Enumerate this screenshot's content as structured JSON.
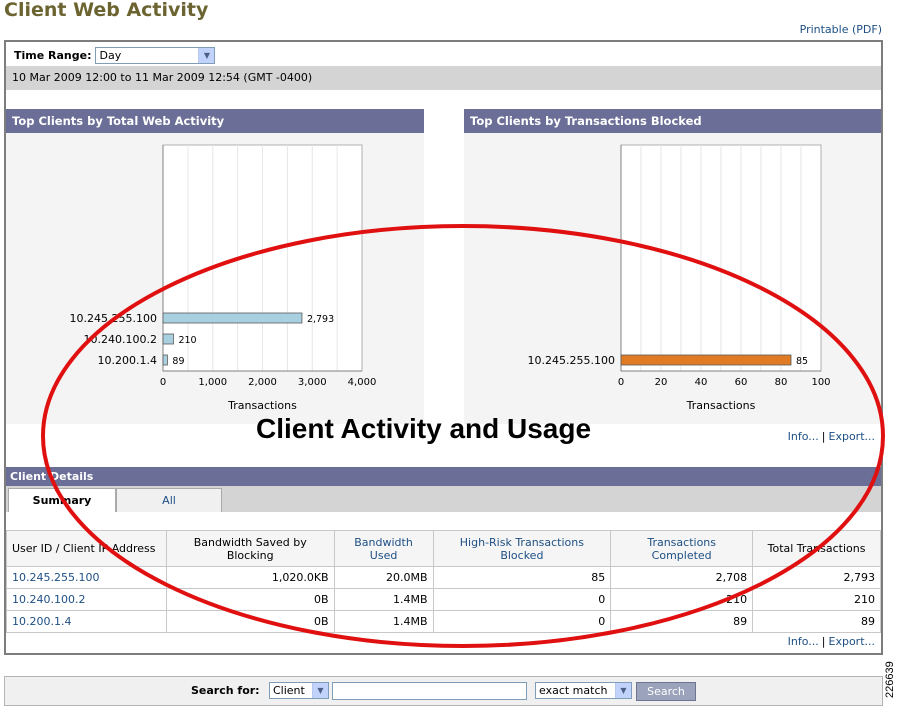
{
  "page": {
    "title": "Client Web Activity",
    "printable_link": "Printable (PDF)"
  },
  "time_range": {
    "label": "Time Range:",
    "selected": "Day",
    "date_range": "10 Mar 2009 12:00 to 11 Mar 2009 12:54 (GMT -0400)"
  },
  "charts_links": {
    "info": "Info...",
    "export": "Export..."
  },
  "chart_data": [
    {
      "type": "bar",
      "title": "Top Clients by Total Web Activity",
      "categories": [
        "10.245.255.100",
        "10.240.100.2",
        "10.200.1.4"
      ],
      "values": [
        2793,
        210,
        89
      ],
      "value_labels": [
        "2,793",
        "210",
        "89"
      ],
      "xlabel": "Transactions",
      "xlim": [
        0,
        4000
      ],
      "xticks": [
        "0",
        "1,000",
        "2,000",
        "3,000",
        "4,000"
      ],
      "xtick_values": [
        0,
        1000,
        2000,
        3000,
        4000
      ],
      "bar_color": "#a8d0e0",
      "orientation": "horizontal"
    },
    {
      "type": "bar",
      "title": "Top Clients by Transactions Blocked",
      "categories": [
        "10.245.255.100"
      ],
      "values": [
        85
      ],
      "value_labels": [
        "85"
      ],
      "xlabel": "Transactions",
      "xlim": [
        0,
        100
      ],
      "xticks": [
        "0",
        "20",
        "40",
        "60",
        "80",
        "100"
      ],
      "xtick_values": [
        0,
        20,
        40,
        60,
        80,
        100
      ],
      "bar_color": "#e07b24",
      "orientation": "horizontal"
    }
  ],
  "client_details": {
    "header": "Client Details",
    "tabs": [
      {
        "label": "Summary"
      },
      {
        "label": "All"
      }
    ],
    "columns": [
      "User ID / Client IP Address",
      "Bandwidth Saved by Blocking",
      "Bandwidth Used",
      "High-Risk Transactions Blocked",
      "Transactions Completed",
      "Total Transactions"
    ],
    "rows": [
      [
        "10.245.255.100",
        "1,020.0KB",
        "20.0MB",
        "85",
        "2,708",
        "2,793"
      ],
      [
        "10.240.100.2",
        "0B",
        "1.4MB",
        "0",
        "210",
        "210"
      ],
      [
        "10.200.1.4",
        "0B",
        "1.4MB",
        "0",
        "89",
        "89"
      ]
    ],
    "info_link": "Info...",
    "export_link": "Export..."
  },
  "search": {
    "label": "Search for:",
    "type_selected": "Client",
    "query": "",
    "match_selected": "exact match",
    "button": "Search"
  },
  "annotation": {
    "callout_text": "Client Activity and Usage",
    "callout_color": "#e01010",
    "figure_number": "226639"
  },
  "colors": {
    "title": "#6b6431",
    "header_bar": "#6b6e96",
    "link": "#1e4f84"
  }
}
